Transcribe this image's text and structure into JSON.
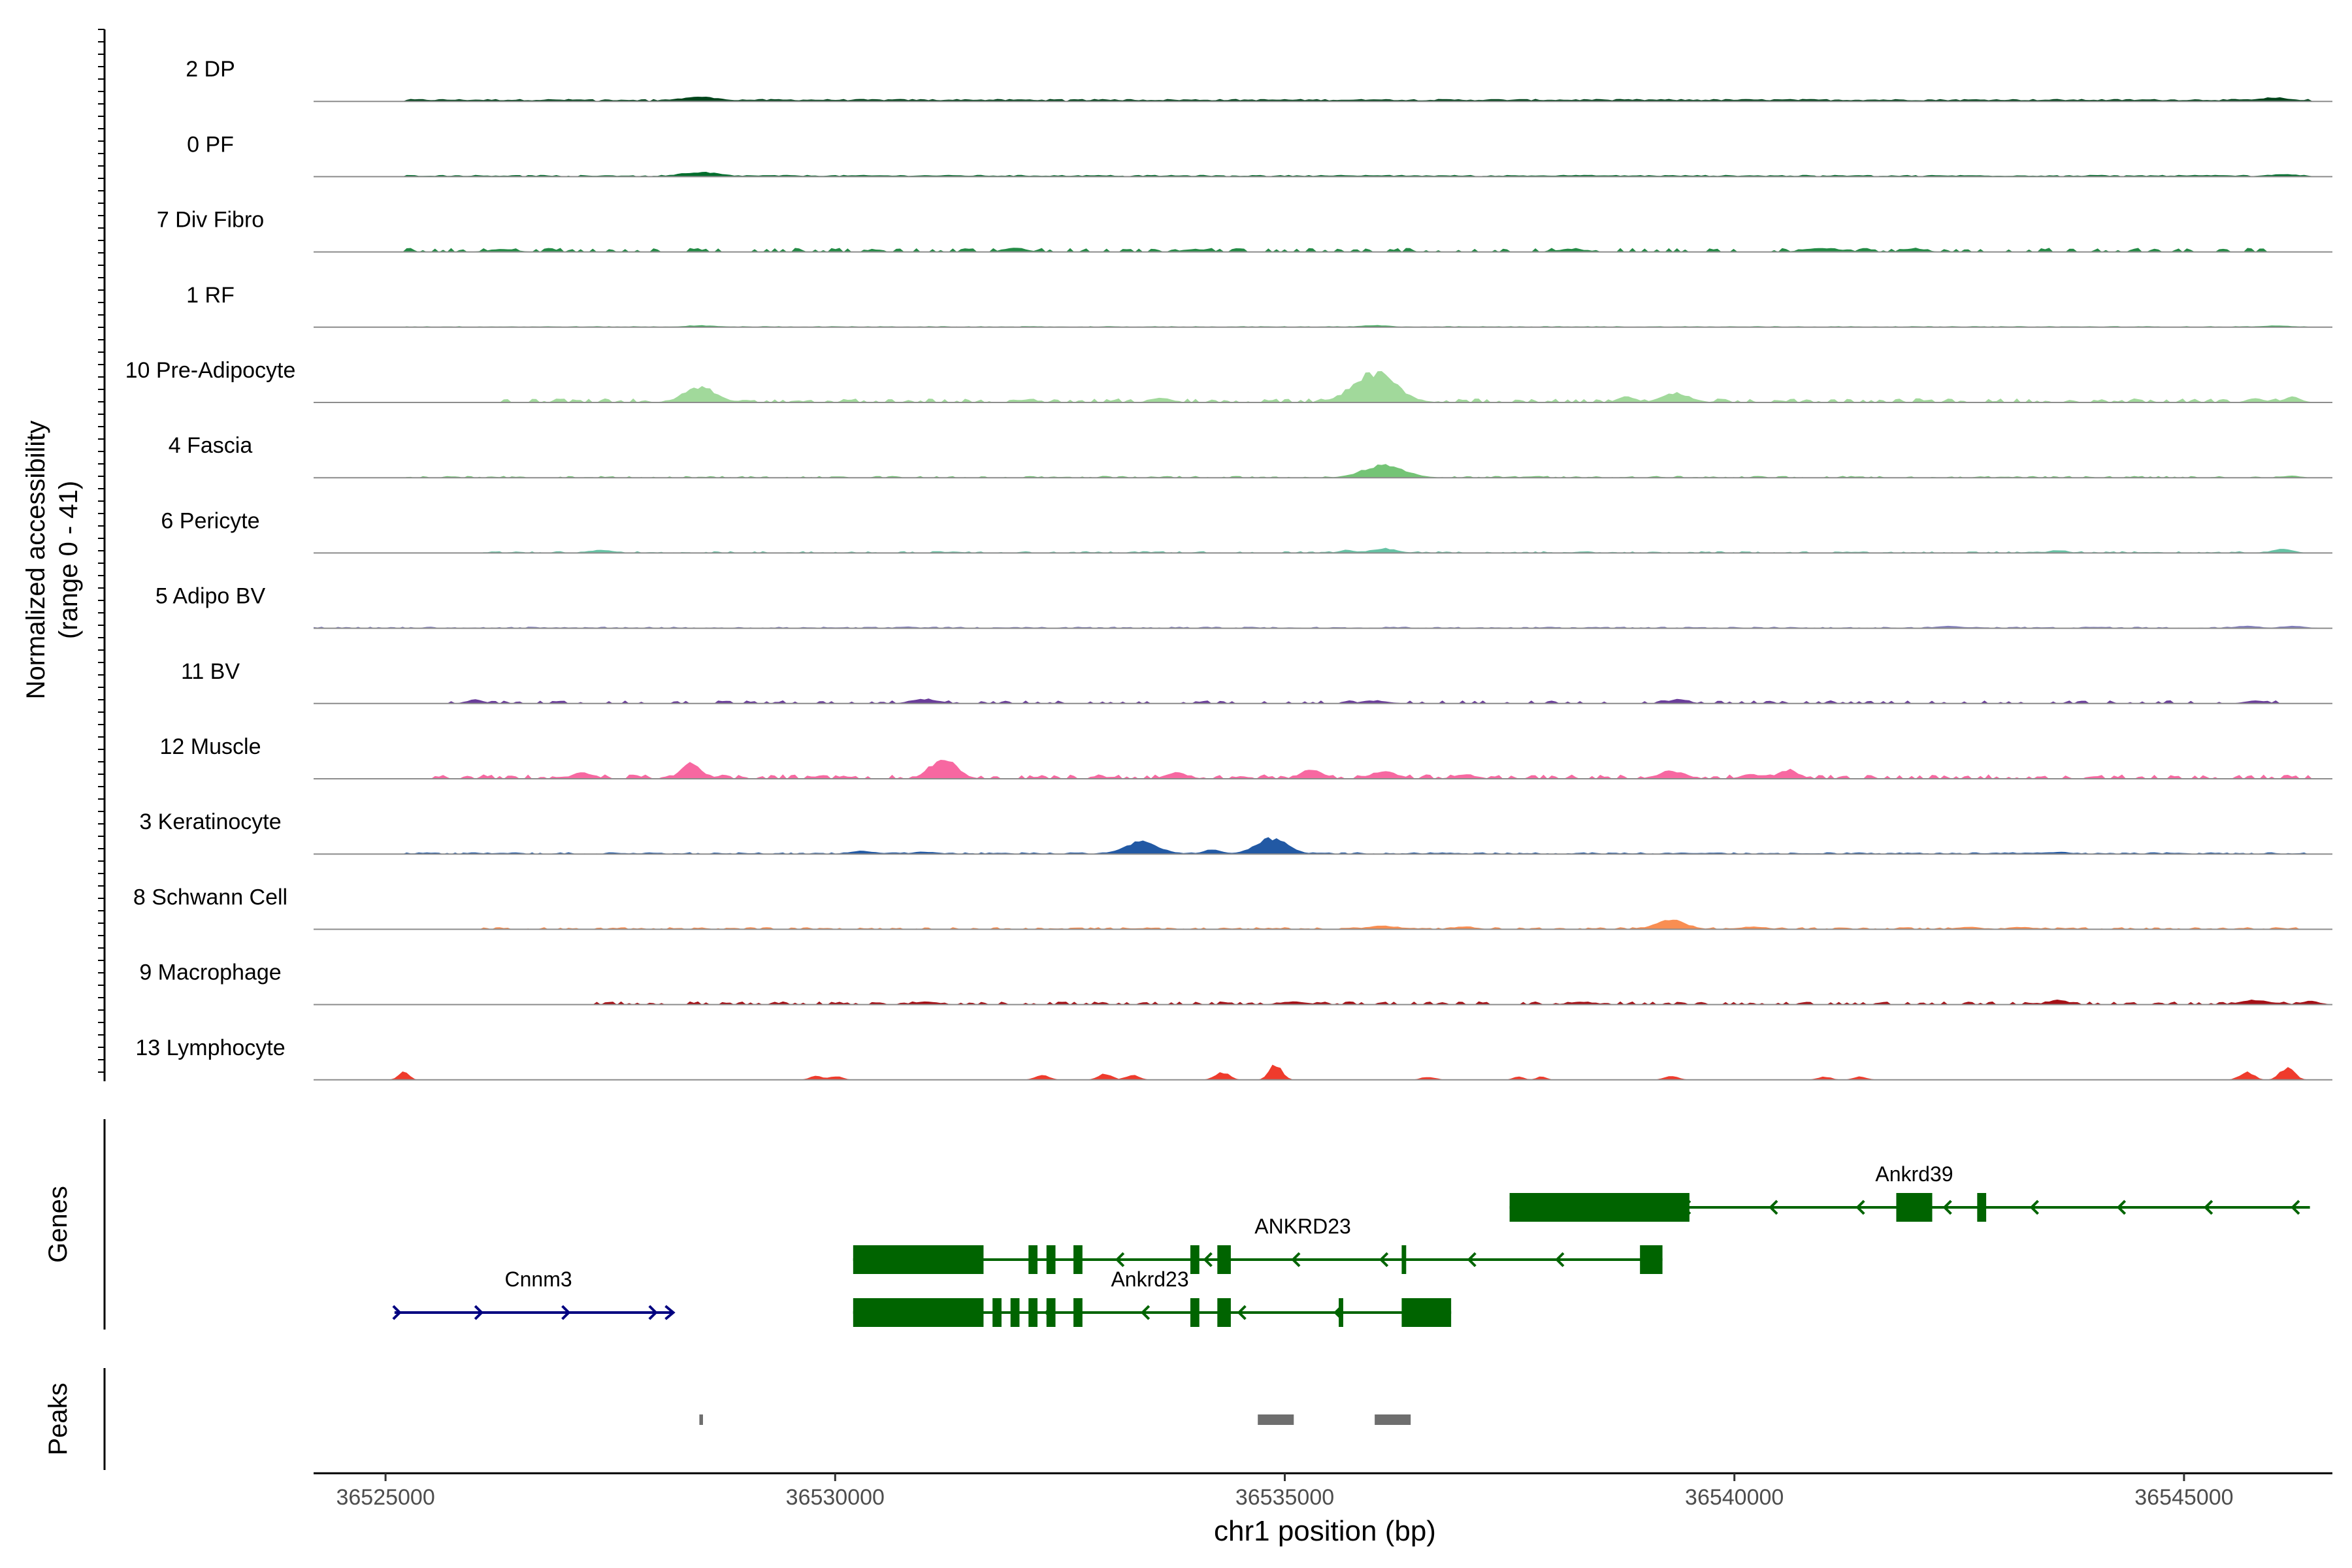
{
  "chart_data": {
    "type": "area",
    "title": "",
    "ylabel_lines": [
      "Normalized accessibility",
      "(range 0 - 41)"
    ],
    "ylim": [
      0,
      41
    ],
    "xlabel": "chr1 position (bp)",
    "xlim": [
      36524200,
      36546650
    ],
    "x_ticks": [
      36525000,
      36530000,
      36535000,
      36540000,
      36545000
    ],
    "x_tick_labels": [
      "36525000",
      "36530000",
      "36535000",
      "36540000",
      "36545000"
    ],
    "panel_labels": {
      "genes": "Genes",
      "peaks": "Peaks"
    },
    "tracks": [
      {
        "name": "2 DP",
        "color": "#00441b",
        "peaks": [
          [
            36528500,
            3,
            230
          ],
          [
            36546000,
            2.5,
            200
          ],
          [
            36536000,
            1.2,
            220
          ],
          [
            36531500,
            1,
            200
          ],
          [
            36543000,
            1,
            200
          ],
          [
            36533000,
            0.9,
            200
          ],
          [
            36538500,
            1,
            200
          ],
          [
            36526000,
            0.8,
            200
          ]
        ],
        "base": [
          0.6,
          1.4
        ],
        "range": [
          36525200,
          36546400
        ],
        "dens": 0.98
      },
      {
        "name": "0 PF",
        "color": "#006d2c",
        "peaks": [
          [
            36528500,
            3,
            230
          ],
          [
            36546100,
            1.5,
            200
          ],
          [
            36536000,
            1,
            200
          ],
          [
            36538300,
            1,
            200
          ],
          [
            36531000,
            0.8,
            200
          ]
        ],
        "base": [
          0.4,
          1.0
        ],
        "range": [
          36525200,
          36546400
        ],
        "dens": 0.95
      },
      {
        "name": "7 Div Fibro",
        "color": "#238b45",
        "peaks": [
          [
            36532000,
            3,
            120
          ],
          [
            36541000,
            2.5,
            200
          ],
          [
            36542000,
            2.5,
            120
          ],
          [
            36526300,
            2,
            150
          ],
          [
            36534000,
            2,
            150
          ],
          [
            36538200,
            2,
            150
          ]
        ],
        "base": [
          0.8,
          2.3
        ],
        "range": [
          36525200,
          36546000
        ],
        "dens": 0.45
      },
      {
        "name": "1 RF",
        "color": "#41ab5d",
        "peaks": [
          [
            36528500,
            1.2,
            200
          ],
          [
            36536000,
            1.2,
            200
          ],
          [
            36546000,
            1,
            200
          ]
        ],
        "base": [
          0.2,
          0.6
        ],
        "range": [
          36525200,
          36546400
        ],
        "dens": 0.98
      },
      {
        "name": "10 Pre-Adipocyte",
        "color": "#a1d99b",
        "peaks": [
          [
            36536000,
            19,
            240
          ],
          [
            36528500,
            10,
            180
          ],
          [
            36539350,
            6,
            160
          ],
          [
            36538800,
            4,
            100
          ],
          [
            36533600,
            3,
            100
          ],
          [
            36546200,
            3.5,
            100
          ],
          [
            36545800,
            2.5,
            100
          ]
        ],
        "base": [
          0.6,
          2.3
        ],
        "range": [
          36526300,
          36546400
        ],
        "dens": 0.55
      },
      {
        "name": "4 Fascia",
        "color": "#74c476",
        "peaks": [
          [
            36536100,
            8,
            230
          ],
          [
            36546200,
            1.2,
            100
          ]
        ],
        "base": [
          0.3,
          1.0
        ],
        "range": [
          36525200,
          36546400
        ],
        "dens": 0.55
      },
      {
        "name": "6 Pericyte",
        "color": "#66c2a4",
        "peaks": [
          [
            36536100,
            3,
            150
          ],
          [
            36527400,
            2,
            150
          ],
          [
            36546100,
            2.5,
            120
          ],
          [
            36535700,
            2,
            100
          ],
          [
            36543600,
            2,
            100
          ]
        ],
        "base": [
          0.3,
          1.0
        ],
        "range": [
          36526000,
          36546400
        ],
        "dens": 0.6
      },
      {
        "name": "5 Adipo BV",
        "color": "#807dba",
        "peaks": [
          [
            36545700,
            1.5,
            150
          ],
          [
            36546200,
            1.5,
            150
          ],
          [
            36542400,
            1.5,
            150
          ],
          [
            36544000,
            1,
            120
          ],
          [
            36530800,
            1,
            120
          ]
        ],
        "base": [
          0.3,
          0.9
        ],
        "range": [
          36524200,
          36546400
        ],
        "dens": 0.7
      },
      {
        "name": "11 BV",
        "color": "#6a3d9a",
        "peaks": [
          [
            36531000,
            3,
            150
          ],
          [
            36536000,
            2,
            150
          ],
          [
            36539400,
            3,
            100
          ],
          [
            36526000,
            2.5,
            100
          ],
          [
            36545800,
            2,
            120
          ]
        ],
        "base": [
          0.8,
          1.8
        ],
        "range": [
          36525700,
          36546200
        ],
        "dens": 0.35
      },
      {
        "name": "12 Muscle",
        "color": "#f768a1",
        "peaks": [
          [
            36531200,
            13,
            150
          ],
          [
            36528400,
            10,
            110
          ],
          [
            36527200,
            4,
            120
          ],
          [
            36536100,
            5,
            150
          ],
          [
            36535300,
            6,
            120
          ],
          [
            36539300,
            5,
            150
          ],
          [
            36540600,
            6,
            110
          ],
          [
            36533800,
            4,
            120
          ],
          [
            36540200,
            3,
            120
          ],
          [
            36537000,
            3,
            120
          ]
        ],
        "base": [
          0.8,
          2.5
        ],
        "range": [
          36525400,
          36546400
        ],
        "dens": 0.55
      },
      {
        "name": "3 Keratinocyte",
        "color": "#2259a4",
        "peaks": [
          [
            36534850,
            10,
            180
          ],
          [
            36533400,
            8,
            190
          ],
          [
            36534200,
            3,
            100
          ],
          [
            36530300,
            2,
            150
          ],
          [
            36531000,
            1.5,
            150
          ],
          [
            36543600,
            1.5,
            120
          ]
        ],
        "base": [
          0.3,
          1.0
        ],
        "range": [
          36525200,
          36546400
        ],
        "dens": 0.85
      },
      {
        "name": "8 Schwann Cell",
        "color": "#f98e52",
        "peaks": [
          [
            36539300,
            6,
            170
          ],
          [
            36536100,
            2.2,
            200
          ],
          [
            36537000,
            2,
            120
          ],
          [
            36540200,
            1.8,
            150
          ],
          [
            36542600,
            1.5,
            150
          ],
          [
            36543200,
            1.5,
            150
          ]
        ],
        "base": [
          0.4,
          1.2
        ],
        "range": [
          36526000,
          36546400
        ],
        "dens": 0.6
      },
      {
        "name": "9 Macrophage",
        "color": "#a50f15",
        "peaks": [
          [
            36545800,
            3,
            170
          ],
          [
            36543600,
            3,
            120
          ],
          [
            36546400,
            2.5,
            100
          ],
          [
            36531000,
            1.8,
            150
          ],
          [
            36535100,
            1.8,
            150
          ],
          [
            36538300,
            1.8,
            150
          ]
        ],
        "base": [
          0.8,
          1.8
        ],
        "range": [
          36527200,
          36546400
        ],
        "dens": 0.5
      },
      {
        "name": "13 Lymphocyte",
        "color": "#ef3b2c",
        "peaks": [
          [
            36534900,
            10,
            70
          ],
          [
            36546150,
            8,
            80
          ],
          [
            36545700,
            5,
            80
          ],
          [
            36534300,
            5,
            80
          ],
          [
            36533000,
            4,
            80
          ],
          [
            36525200,
            5,
            60
          ],
          [
            36529800,
            2.5,
            80
          ],
          [
            36530000,
            2.5,
            80
          ],
          [
            36533300,
            3,
            80
          ],
          [
            36536600,
            2,
            80
          ],
          [
            36539300,
            2.5,
            80
          ],
          [
            36541000,
            2,
            80
          ],
          [
            36541400,
            2,
            80
          ],
          [
            36537600,
            2,
            60
          ],
          [
            36537850,
            2,
            60
          ],
          [
            36532300,
            3,
            80
          ]
        ],
        "base": [
          0,
          0
        ],
        "range": [
          36525000,
          36546500
        ],
        "dens": 0
      }
    ],
    "genes": [
      {
        "name": "Ankrd39",
        "row": 0,
        "start": 36537500,
        "end": 36546400,
        "strand": "-",
        "color": "#006400",
        "exons": [
          [
            36537500,
            36539500
          ],
          [
            36541800,
            36542200
          ],
          [
            36542700,
            36542800
          ]
        ],
        "label_x": 36542000
      },
      {
        "name": "ANKRD23",
        "row": 1,
        "start": 36530200,
        "end": 36539200,
        "strand": "-",
        "color": "#006400",
        "exons": [
          [
            36530200,
            36531650
          ],
          [
            36532150,
            36532250
          ],
          [
            36532350,
            36532450
          ],
          [
            36532650,
            36532750
          ],
          [
            36533950,
            36534050
          ],
          [
            36534250,
            36534400
          ],
          [
            36536300,
            36536350
          ],
          [
            36538950,
            36539200
          ]
        ],
        "label_x": 36535200
      },
      {
        "name": "Ankrd23",
        "row": 2,
        "start": 36530200,
        "end": 36536850,
        "strand": "-",
        "color": "#006400",
        "exons": [
          [
            36530200,
            36531650
          ],
          [
            36531750,
            36531850
          ],
          [
            36531950,
            36532050
          ],
          [
            36532150,
            36532250
          ],
          [
            36532350,
            36532450
          ],
          [
            36532650,
            36532750
          ],
          [
            36533950,
            36534050
          ],
          [
            36534250,
            36534400
          ],
          [
            36535600,
            36535650
          ],
          [
            36536300,
            36536850
          ]
        ],
        "label_x": 36533500
      },
      {
        "name": "Cnnm3",
        "row": 2,
        "start": 36525100,
        "end": 36528200,
        "strand": "+",
        "color": "#000080",
        "exons": [],
        "label_x": 36526700
      }
    ],
    "peaks": [
      [
        36528490,
        36528530
      ],
      [
        36534700,
        36535100
      ],
      [
        36536000,
        36536400
      ]
    ],
    "peak_color": "#6e6e6e"
  }
}
